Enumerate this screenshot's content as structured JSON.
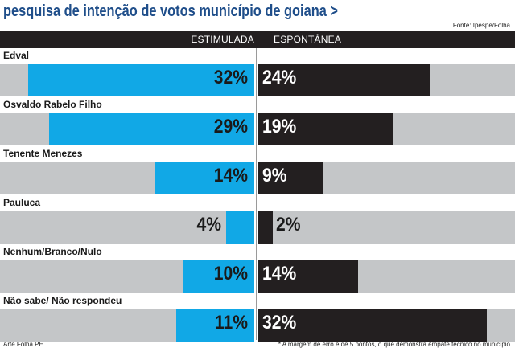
{
  "title": "pesquisa de intenção de votos município de goiana >",
  "source": "Fonte: Ipespe/Folha",
  "credit": "Arte Folha PE",
  "footnote": "* A margem de erro é de 5 pontos, o que demonstra empate técnico no município",
  "colors": {
    "title": "#1f4e8a",
    "stimulated_bar": "#11a8e6",
    "spontaneous_bar": "#231f20",
    "track": "#c4c6c8",
    "header": "#231f20"
  },
  "chart_data": {
    "type": "bar",
    "orientation": "horizontal-diverging",
    "title": "pesquisa de intenção de votos município de goiana >",
    "series": [
      {
        "name": "ESTIMULADA",
        "values": [
          32,
          29,
          14,
          4,
          10,
          11
        ]
      },
      {
        "name": "ESPONTÂNEA",
        "values": [
          24,
          19,
          9,
          2,
          14,
          32
        ]
      }
    ],
    "categories": [
      "Edval",
      "Osvaldo Rabelo Filho",
      "Tenente Menezes",
      "Pauluca",
      "Nenhum/Branco/Nulo",
      "Não sabe/ Não respondeu"
    ],
    "value_labels": {
      "ESTIMULADA": [
        "32%",
        "29%",
        "14%",
        "4%",
        "10%",
        "11%"
      ],
      "ESPONTÂNEA": [
        "24%",
        "19%",
        "9%",
        "2%",
        "14%",
        "32%"
      ]
    },
    "unit": "%",
    "xlim": [
      0,
      36
    ],
    "grid": false,
    "legend": "top"
  }
}
